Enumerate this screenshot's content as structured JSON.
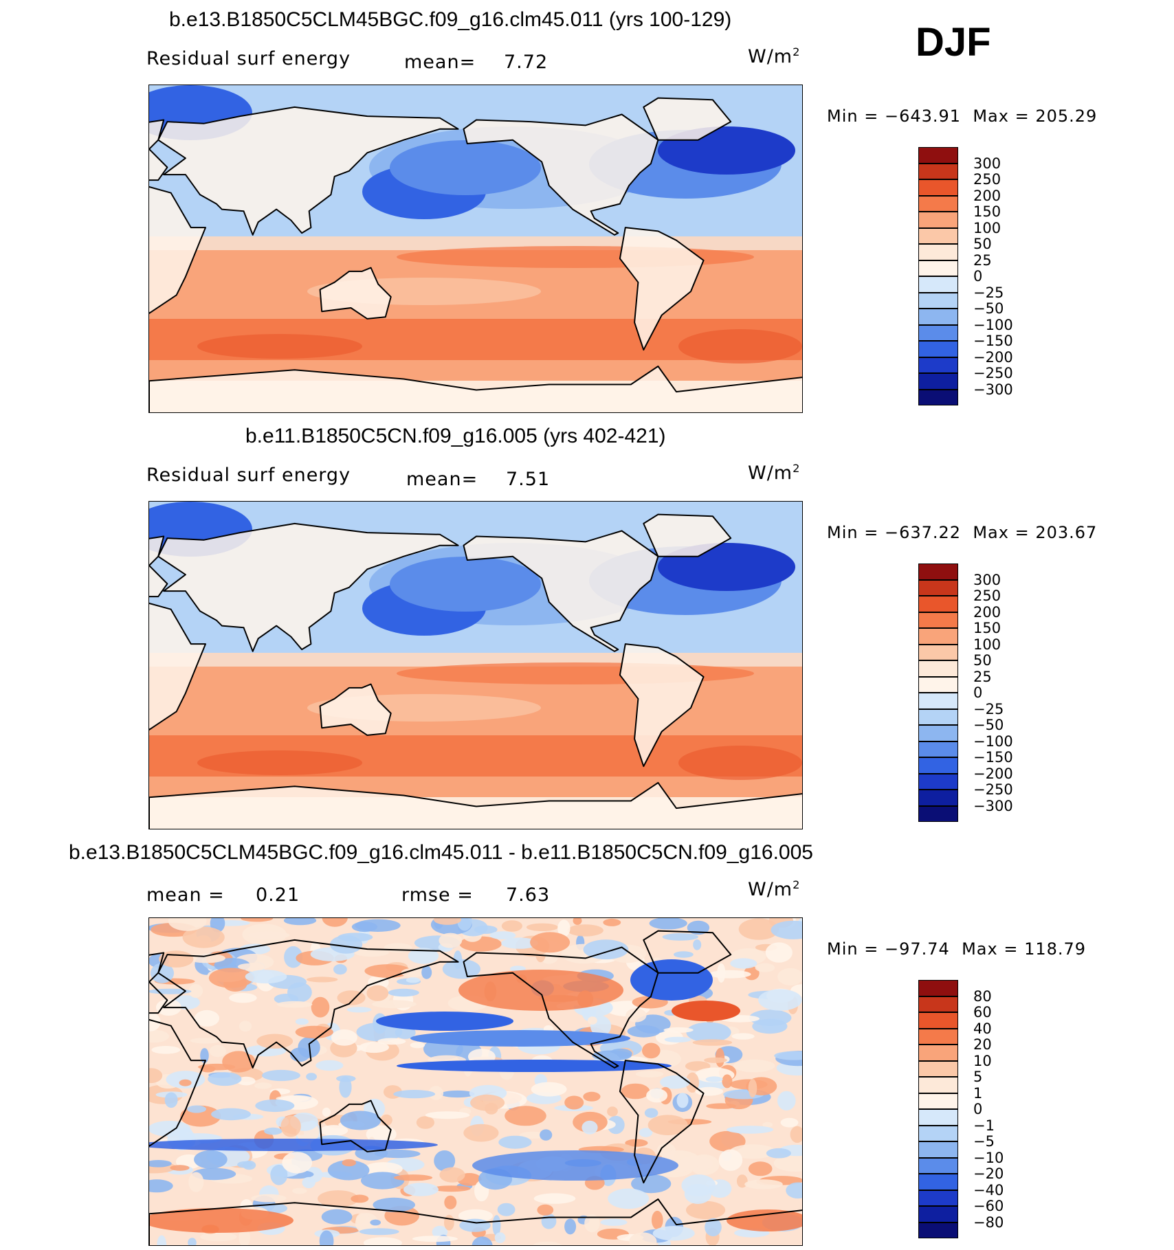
{
  "season": "DJF",
  "colors": {
    "warm": [
      "#fde9d9",
      "#fbc8a8",
      "#f9a47a",
      "#f47a4a",
      "#e9562b",
      "#c8361b",
      "#8f0f0f"
    ],
    "cool": [
      "#d6e8fa",
      "#b4d3f6",
      "#8db6f0",
      "#5b8cea",
      "#3263e3",
      "#1d3bc9",
      "#0e1fa0",
      "#0a0e75"
    ]
  },
  "panels": [
    {
      "title": "b.e13.B1850C5CLM45BGC.f09_g16.clm45.011 (yrs 100-129)",
      "field": "Residual surf energy",
      "stat1_label": "mean=",
      "stat1_value": "7.72",
      "units": "W/m",
      "units_sup": "2",
      "min_label": "Min",
      "min_value": "−643.91",
      "max_label": "Max",
      "max_value": "205.29",
      "colorbar_labels": [
        "300",
        "250",
        "200",
        "150",
        "100",
        "50",
        "25",
        "0",
        "−25",
        "−50",
        "−100",
        "−150",
        "−200",
        "−250",
        "−300"
      ]
    },
    {
      "title": "b.e11.B1850C5CN.f09_g16.005 (yrs 402-421)",
      "field": "Residual surf energy",
      "stat1_label": "mean=",
      "stat1_value": "7.51",
      "units": "W/m",
      "units_sup": "2",
      "min_label": "Min",
      "min_value": "−637.22",
      "max_label": "Max",
      "max_value": "203.67",
      "colorbar_labels": [
        "300",
        "250",
        "200",
        "150",
        "100",
        "50",
        "25",
        "0",
        "−25",
        "−50",
        "−100",
        "−150",
        "−200",
        "−250",
        "−300"
      ]
    },
    {
      "title": "b.e13.B1850C5CLM45BGC.f09_g16.clm45.011 - b.e11.B1850C5CN.f09_g16.005",
      "stat1_label": "mean =",
      "stat1_value": "0.21",
      "stat2_label": "rmse =",
      "stat2_value": "7.63",
      "units": "W/m",
      "units_sup": "2",
      "min_label": "Min",
      "min_value": "−97.74",
      "max_label": "Max",
      "max_value": "118.79",
      "colorbar_labels": [
        "80",
        "60",
        "40",
        "20",
        "10",
        "5",
        "1",
        "0",
        "−1",
        "−5",
        "−10",
        "−20",
        "−40",
        "−60",
        "−80"
      ]
    }
  ],
  "chart_data": [
    {
      "type": "heatmap",
      "title": "b.e13.B1850C5CLM45BGC.f09_g16.clm45.011 (yrs 100-129)",
      "variable": "Residual surf energy",
      "units": "W/m2",
      "season": "DJF",
      "mean": 7.72,
      "min": -643.91,
      "max": 205.29,
      "contour_levels": [
        -300,
        -250,
        -200,
        -150,
        -100,
        -50,
        -25,
        0,
        25,
        50,
        100,
        150,
        200,
        250,
        300
      ]
    },
    {
      "type": "heatmap",
      "title": "b.e11.B1850C5CN.f09_g16.005 (yrs 402-421)",
      "variable": "Residual surf energy",
      "units": "W/m2",
      "season": "DJF",
      "mean": 7.51,
      "min": -637.22,
      "max": 203.67,
      "contour_levels": [
        -300,
        -250,
        -200,
        -150,
        -100,
        -50,
        -25,
        0,
        25,
        50,
        100,
        150,
        200,
        250,
        300
      ]
    },
    {
      "type": "heatmap",
      "title": "b.e13.B1850C5CLM45BGC.f09_g16.clm45.011 - b.e11.B1850C5CN.f09_g16.005",
      "units": "W/m2",
      "season": "DJF",
      "mean": 0.21,
      "rmse": 7.63,
      "min": -97.74,
      "max": 118.79,
      "contour_levels": [
        -80,
        -60,
        -40,
        -20,
        -10,
        -5,
        -1,
        0,
        1,
        5,
        10,
        20,
        40,
        60,
        80
      ]
    }
  ]
}
